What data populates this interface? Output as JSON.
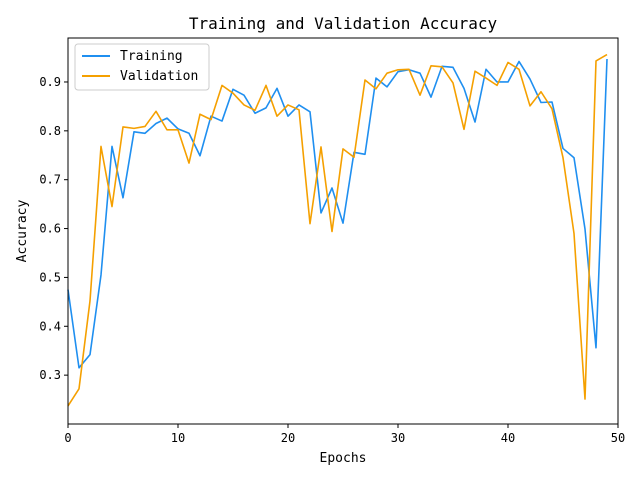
{
  "chart_data": {
    "type": "line",
    "title": "Training and Validation Accuracy",
    "xlabel": "Epochs",
    "ylabel": "Accuracy",
    "xlim": [
      0,
      50
    ],
    "ylim": [
      0.2,
      0.99
    ],
    "xticks": [
      0,
      10,
      20,
      30,
      40,
      50
    ],
    "yticks": [
      0.3,
      0.4,
      0.5,
      0.6,
      0.7,
      0.8,
      0.9
    ],
    "grid": false,
    "legend_position": "top-left",
    "x": [
      0,
      1,
      2,
      3,
      4,
      5,
      6,
      7,
      8,
      9,
      10,
      11,
      12,
      13,
      14,
      15,
      16,
      17,
      18,
      19,
      20,
      21,
      22,
      23,
      24,
      25,
      26,
      27,
      28,
      29,
      30,
      31,
      32,
      33,
      34,
      35,
      36,
      37,
      38,
      39,
      40,
      41,
      42,
      43,
      44,
      45,
      46,
      47,
      48,
      49
    ],
    "series": [
      {
        "name": "Training",
        "color": "#1f8ff0",
        "values": [
          0.475,
          0.315,
          0.342,
          0.505,
          0.768,
          0.663,
          0.798,
          0.795,
          0.815,
          0.826,
          0.804,
          0.795,
          0.749,
          0.83,
          0.82,
          0.885,
          0.873,
          0.836,
          0.847,
          0.887,
          0.83,
          0.853,
          0.839,
          0.632,
          0.683,
          0.611,
          0.756,
          0.752,
          0.908,
          0.89,
          0.921,
          0.925,
          0.918,
          0.869,
          0.932,
          0.93,
          0.887,
          0.818,
          0.926,
          0.9,
          0.9,
          0.942,
          0.906,
          0.858,
          0.859,
          0.764,
          0.745,
          0.599,
          0.356,
          0.947
        ]
      },
      {
        "name": "Validation",
        "color": "#f5a000",
        "values": [
          0.237,
          0.272,
          0.452,
          0.768,
          0.645,
          0.808,
          0.805,
          0.809,
          0.84,
          0.802,
          0.802,
          0.734,
          0.834,
          0.823,
          0.893,
          0.877,
          0.853,
          0.842,
          0.893,
          0.83,
          0.853,
          0.843,
          0.61,
          0.767,
          0.594,
          0.763,
          0.746,
          0.904,
          0.886,
          0.918,
          0.925,
          0.926,
          0.873,
          0.933,
          0.931,
          0.898,
          0.803,
          0.922,
          0.908,
          0.893,
          0.94,
          0.926,
          0.851,
          0.88,
          0.845,
          0.745,
          0.59,
          0.251,
          0.943,
          0.956
        ]
      }
    ]
  }
}
